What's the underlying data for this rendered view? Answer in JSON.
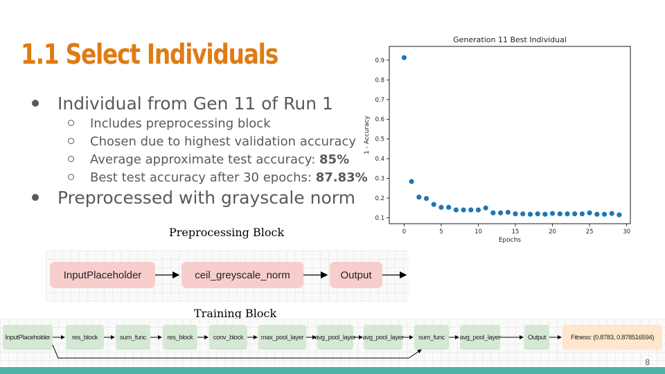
{
  "slide": {
    "title": "1.1 Select Individuals",
    "bullets": [
      {
        "text": "Individual from Gen 11 of Run 1",
        "sub": [
          {
            "text": "Includes preprocessing block",
            "bold": ""
          },
          {
            "text": "Chosen due to highest validation accuracy",
            "bold": ""
          },
          {
            "text": "Average approximate test accuracy: ",
            "bold": "85%"
          },
          {
            "text": "Best test accuracy after 30 epochs: ",
            "bold": "87.83%"
          }
        ]
      },
      {
        "text": "Preprocessed with grayscale norm",
        "sub": []
      }
    ],
    "page_number": "8"
  },
  "preprocessing_block": {
    "label": "Preprocessing Block",
    "nodes": [
      "InputPlaceholder",
      "ceil_greyscale_norm",
      "Output"
    ]
  },
  "training_block": {
    "label": "Training Block",
    "nodes": [
      "InputPlaceholder",
      "res_block",
      "sum_func",
      "res_block",
      "conv_block",
      "max_pool_layer",
      "avg_pool_layer",
      "avg_pool_layer",
      "sum_func",
      "avg_pool_layer",
      "Output",
      "Fitness: (0.8783, 0.878516594)"
    ]
  },
  "chart_data": {
    "type": "scatter",
    "title": "Generation 11 Best Individual",
    "xlabel": "Epochs",
    "ylabel": "1 - Accuracy",
    "xlim": [
      -2,
      30.5
    ],
    "ylim": [
      0.07,
      0.97
    ],
    "xticks": [
      0,
      5,
      10,
      15,
      20,
      25,
      30
    ],
    "yticks": [
      0.1,
      0.2,
      0.3,
      0.4,
      0.5,
      0.6,
      0.7,
      0.8,
      0.9
    ],
    "grid": false,
    "color": "#1f77b4",
    "x": [
      0,
      1,
      2,
      3,
      4,
      5,
      6,
      7,
      8,
      9,
      10,
      11,
      12,
      13,
      14,
      15,
      16,
      17,
      18,
      19,
      20,
      21,
      22,
      23,
      24,
      25,
      26,
      27,
      28,
      29
    ],
    "y": [
      0.913,
      0.284,
      0.205,
      0.198,
      0.168,
      0.153,
      0.153,
      0.14,
      0.14,
      0.14,
      0.14,
      0.15,
      0.125,
      0.125,
      0.128,
      0.12,
      0.12,
      0.118,
      0.12,
      0.118,
      0.122,
      0.12,
      0.12,
      0.12,
      0.12,
      0.125,
      0.118,
      0.118,
      0.122,
      0.115
    ]
  }
}
